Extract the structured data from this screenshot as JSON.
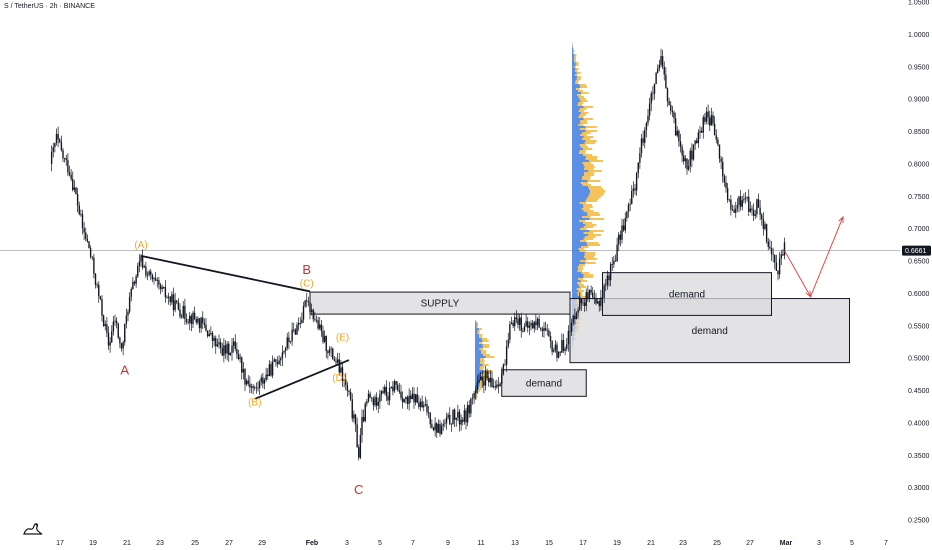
{
  "header": {
    "title": "S / TetherUS · 2h · BINANCE"
  },
  "colors": {
    "background": "#ffffff",
    "candle": "#131722",
    "wave_red": "#d32f2f",
    "wave_orange": "#f5a623",
    "zone_fill": "#d9dadc",
    "zone_border": "#131722",
    "projection": "#e53935",
    "price_tag_bg": "#131722",
    "price_tag_text": "#ffffff",
    "vp_blue": "#3d7be0",
    "vp_yellow": "#f5b93d",
    "horizontal_line": "#b2b5be"
  },
  "chart_data": {
    "type": "candlestick",
    "title": "S / TetherUS · 2h · BINANCE",
    "symbol": "S / TetherUS",
    "interval": "2h",
    "exchange": "BINANCE",
    "current_price": "0.6661",
    "ylim": [
      0.25,
      1.05
    ],
    "y_ticks": [
      "1.0500",
      "1.0000",
      "0.9500",
      "0.9000",
      "0.8500",
      "0.8000",
      "0.7500",
      "0.7000",
      "0.6500",
      "0.6000",
      "0.5500",
      "0.5000",
      "0.4500",
      "0.4000",
      "0.3500",
      "0.3000",
      "0.2500"
    ],
    "x_tick_labels": [
      "17",
      "19",
      "21",
      "23",
      "25",
      "27",
      "29",
      "Feb",
      "3",
      "5",
      "7",
      "9",
      "11",
      "13",
      "15",
      "17",
      "19",
      "21",
      "23",
      "25",
      "27",
      "Mar",
      "3",
      "5",
      "7"
    ],
    "price_path": [
      [
        0,
        0.8
      ],
      [
        2,
        0.84
      ],
      [
        4,
        0.81
      ],
      [
        6,
        0.79
      ],
      [
        8,
        0.75
      ],
      [
        10,
        0.7
      ],
      [
        12,
        0.67
      ],
      [
        14,
        0.62
      ],
      [
        16,
        0.57
      ],
      [
        18,
        0.52
      ],
      [
        20,
        0.56
      ],
      [
        22,
        0.51
      ],
      [
        24,
        0.58
      ],
      [
        26,
        0.62
      ],
      [
        28,
        0.65
      ],
      [
        30,
        0.63
      ],
      [
        33,
        0.61
      ],
      [
        36,
        0.595
      ],
      [
        39,
        0.58
      ],
      [
        42,
        0.565
      ],
      [
        45,
        0.56
      ],
      [
        48,
        0.545
      ],
      [
        51,
        0.52
      ],
      [
        54,
        0.51
      ],
      [
        57,
        0.52
      ],
      [
        60,
        0.47
      ],
      [
        63,
        0.45
      ],
      [
        66,
        0.47
      ],
      [
        69,
        0.49
      ],
      [
        72,
        0.515
      ],
      [
        75,
        0.54
      ],
      [
        78,
        0.57
      ],
      [
        79,
        0.595
      ],
      [
        80,
        0.58
      ],
      [
        82,
        0.555
      ],
      [
        84,
        0.53
      ],
      [
        86,
        0.51
      ],
      [
        88,
        0.495
      ],
      [
        90,
        0.47
      ],
      [
        92,
        0.44
      ],
      [
        94,
        0.39
      ],
      [
        95,
        0.35
      ],
      [
        96,
        0.4
      ],
      [
        98,
        0.44
      ],
      [
        100,
        0.43
      ],
      [
        102,
        0.455
      ],
      [
        104,
        0.44
      ],
      [
        106,
        0.46
      ],
      [
        108,
        0.445
      ],
      [
        110,
        0.43
      ],
      [
        112,
        0.44
      ],
      [
        114,
        0.425
      ],
      [
        116,
        0.42
      ],
      [
        118,
        0.395
      ],
      [
        120,
        0.39
      ],
      [
        122,
        0.4
      ],
      [
        124,
        0.41
      ],
      [
        126,
        0.405
      ],
      [
        128,
        0.41
      ],
      [
        130,
        0.44
      ],
      [
        132,
        0.46
      ],
      [
        134,
        0.47
      ],
      [
        136,
        0.455
      ],
      [
        138,
        0.465
      ],
      [
        140,
        0.49
      ],
      [
        142,
        0.56
      ],
      [
        144,
        0.56
      ],
      [
        146,
        0.545
      ],
      [
        148,
        0.55
      ],
      [
        150,
        0.555
      ],
      [
        152,
        0.545
      ],
      [
        154,
        0.52
      ],
      [
        156,
        0.51
      ],
      [
        158,
        0.52
      ],
      [
        160,
        0.54
      ],
      [
        162,
        0.58
      ],
      [
        164,
        0.59
      ],
      [
        166,
        0.595
      ],
      [
        168,
        0.58
      ],
      [
        170,
        0.6
      ],
      [
        172,
        0.63
      ],
      [
        174,
        0.66
      ],
      [
        176,
        0.7
      ],
      [
        178,
        0.73
      ],
      [
        180,
        0.77
      ],
      [
        182,
        0.83
      ],
      [
        184,
        0.88
      ],
      [
        186,
        0.92
      ],
      [
        188,
        0.96
      ],
      [
        190,
        0.9
      ],
      [
        192,
        0.86
      ],
      [
        194,
        0.83
      ],
      [
        196,
        0.8
      ],
      [
        198,
        0.82
      ],
      [
        200,
        0.85
      ],
      [
        202,
        0.88
      ],
      [
        204,
        0.86
      ],
      [
        206,
        0.81
      ],
      [
        208,
        0.76
      ],
      [
        210,
        0.72
      ],
      [
        212,
        0.74
      ],
      [
        214,
        0.75
      ],
      [
        216,
        0.72
      ],
      [
        218,
        0.74
      ],
      [
        220,
        0.7
      ],
      [
        222,
        0.66
      ],
      [
        224,
        0.64
      ],
      [
        226,
        0.67
      ]
    ],
    "zones": [
      {
        "label": "SUPPLY",
        "x0": 80,
        "x1": 160,
        "y_top": 0.602,
        "y_bottom": 0.568
      },
      {
        "label": "demand",
        "x0": 139,
        "x1": 165,
        "y_top": 0.482,
        "y_bottom": 0.441
      },
      {
        "label": "demand",
        "x0": 160,
        "x1": 246,
        "y_top": 0.592,
        "y_bottom": 0.493
      },
      {
        "label": "demand",
        "x0": 170,
        "x1": 222,
        "y_top": 0.632,
        "y_bottom": 0.566
      }
    ],
    "wave_labels": [
      {
        "text": "A",
        "color": "red",
        "x": 23,
        "y": 0.475
      },
      {
        "text": "B",
        "color": "red",
        "x": 79,
        "y": 0.63
      },
      {
        "text": "C",
        "color": "red",
        "x": 95,
        "y": 0.29
      },
      {
        "text": "(A)",
        "color": "orange",
        "x": 28,
        "y": 0.67
      },
      {
        "text": "(B)",
        "color": "orange",
        "x": 63,
        "y": 0.427
      },
      {
        "text": "(C)",
        "color": "orange",
        "x": 79,
        "y": 0.611
      },
      {
        "text": "(D)",
        "color": "orange",
        "x": 89,
        "y": 0.465
      },
      {
        "text": "(E)",
        "color": "orange",
        "x": 90,
        "y": 0.527
      }
    ],
    "trendlines": [
      {
        "from": [
          28,
          0.658
        ],
        "to": [
          80,
          0.603
        ]
      },
      {
        "from": [
          63,
          0.437
        ],
        "to": [
          92,
          0.497
        ]
      }
    ],
    "projection": {
      "points": [
        [
          226,
          0.6661
        ],
        [
          234,
          0.595
        ],
        [
          244,
          0.718
        ]
      ]
    }
  }
}
